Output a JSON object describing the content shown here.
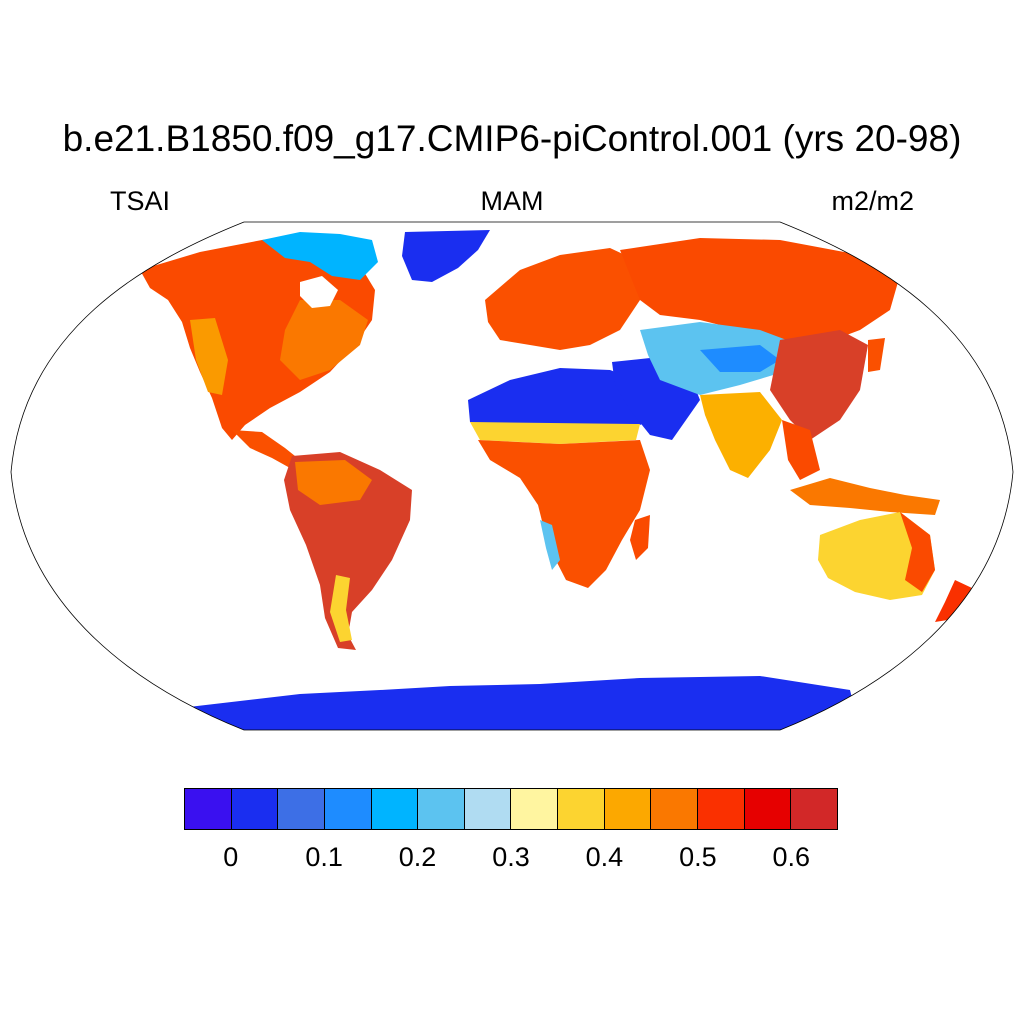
{
  "title": "b.e21.B1850.f09_g17.CMIP6-piControl.001 (yrs 20-98)",
  "variable": "TSAI",
  "season": "MAM",
  "units": "m2/m2",
  "colorbar": {
    "colors": [
      "#3a10f0",
      "#1a2ef0",
      "#3d6fe6",
      "#1e8cff",
      "#00b4ff",
      "#5cc3f0",
      "#b0dcf2",
      "#fff5a0",
      "#fcd430",
      "#fca800",
      "#fa7800",
      "#fa3000",
      "#e60000",
      "#d22828"
    ],
    "tick_labels": [
      "0",
      "0.1",
      "0.2",
      "0.3",
      "0.4",
      "0.5",
      "0.6"
    ]
  },
  "map": {
    "projection": "robinson",
    "regions": [
      {
        "name": "North America boreal",
        "value": 0.5
      },
      {
        "name": "Greenland",
        "value": 0.05
      },
      {
        "name": "Canadian Arctic islands",
        "value": 0.15
      },
      {
        "name": "South America",
        "value": 0.55
      },
      {
        "name": "Sahara",
        "value": 0.05
      },
      {
        "name": "Arabian Peninsula",
        "value": 0.05
      },
      {
        "name": "Sahel",
        "value": 0.3
      },
      {
        "name": "Central Africa",
        "value": 0.5
      },
      {
        "name": "Europe",
        "value": 0.5
      },
      {
        "name": "Siberia",
        "value": 0.55
      },
      {
        "name": "Central Asia deserts",
        "value": 0.2
      },
      {
        "name": "India",
        "value": 0.4
      },
      {
        "name": "Southeast Asia",
        "value": 0.5
      },
      {
        "name": "Australia interior",
        "value": 0.35
      },
      {
        "name": "Antarctica",
        "value": 0.05
      }
    ]
  }
}
